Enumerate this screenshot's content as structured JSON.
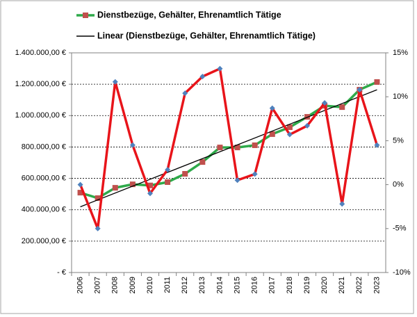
{
  "chart_data": {
    "type": "line",
    "categories": [
      "2006",
      "2007",
      "2008",
      "2009",
      "2010",
      "2011",
      "2012",
      "2013",
      "2014",
      "2015",
      "2016",
      "2017",
      "2018",
      "2019",
      "2020",
      "2021",
      "2022",
      "2023"
    ],
    "series": [
      {
        "name": "Dienstbezüge, Gehälter, Ehrenamtlich Tätige",
        "color": "#2eaa4a",
        "marker_color": "#c0504d",
        "marker": "square",
        "values": [
          509000,
          474000,
          540000,
          562000,
          555000,
          576000,
          629000,
          704000,
          797000,
          797000,
          811000,
          882000,
          926000,
          992000,
          1063000,
          1054000,
          1165000,
          1214000
        ]
      },
      {
        "color": "#e8141a",
        "marker_color": "#4f81bd",
        "marker": "diamond",
        "axis": "y2",
        "values": [
          0,
          -5,
          11.7,
          4.5,
          -1,
          1.7,
          10.4,
          12.3,
          13.2,
          0.5,
          1.2,
          8.7,
          5.7,
          6.7,
          9.3,
          -2.2,
          10.8,
          4.5
        ]
      }
    ],
    "trendline": {
      "name": "Linear (Dienstbezüge, Gehälter, Ehrenamtlich Tätige)",
      "color": "#000000",
      "kind": "linear",
      "of_series": 0
    },
    "ylim": [
      0,
      1400000
    ],
    "yticks": [
      {
        "value": 0,
        "label": "- €"
      },
      {
        "value": 200000,
        "label": "200.000,00 €"
      },
      {
        "value": 400000,
        "label": "400.000,00 €"
      },
      {
        "value": 600000,
        "label": "600.000,00 €"
      },
      {
        "value": 800000,
        "label": "800.000,00 €"
      },
      {
        "value": 1000000,
        "label": "1.000.000,00 €"
      },
      {
        "value": 1200000,
        "label": "1.200.000,00 €"
      },
      {
        "value": 1400000,
        "label": "1.400.000,00 €"
      }
    ],
    "y2lim": [
      -10,
      15
    ],
    "y2ticks": [
      {
        "value": -10,
        "label": "-10%"
      },
      {
        "value": -5,
        "label": "-5%"
      },
      {
        "value": 0,
        "label": "0%"
      },
      {
        "value": 5,
        "label": "5%"
      },
      {
        "value": 10,
        "label": "10%"
      },
      {
        "value": 15,
        "label": "15%"
      }
    ],
    "grid": true
  }
}
